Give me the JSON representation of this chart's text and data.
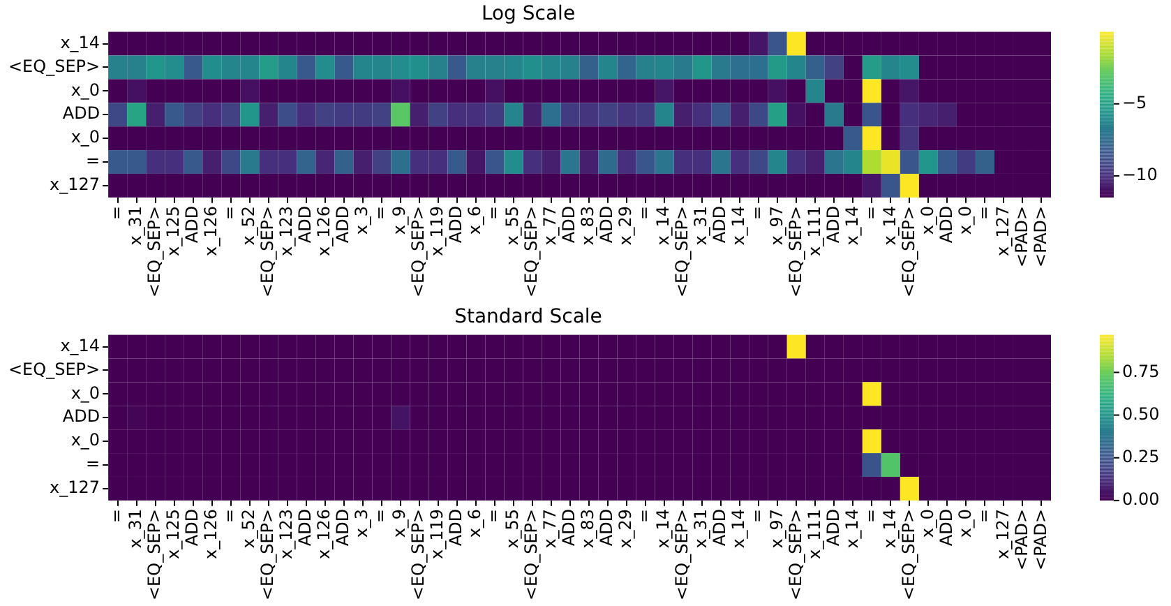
{
  "chart_data": [
    {
      "type": "heatmap",
      "title": "Log Scale",
      "categories": [
        "=",
        "x_31",
        "<EQ_SEP>",
        "x_125",
        "ADD",
        "x_126",
        "=",
        "x_52",
        "<EQ_SEP>",
        "x_123",
        "ADD",
        "x_126",
        "ADD",
        "x_3",
        "=",
        "x_9",
        "<EQ_SEP>",
        "x_119",
        "ADD",
        "x_6",
        "=",
        "x_55",
        "<EQ_SEP>",
        "x_77",
        "ADD",
        "x_83",
        "ADD",
        "x_29",
        "=",
        "x_14",
        "<EQ_SEP>",
        "x_31",
        "ADD",
        "x_14",
        "=",
        "x_97",
        "<EQ_SEP>",
        "x_111",
        "ADD",
        "x_14",
        "=",
        "x_14",
        "<EQ_SEP>",
        "x_0",
        "ADD",
        "x_0",
        "=",
        "x_127",
        "<PAD>",
        "<PAD>"
      ],
      "y_categories": [
        "x_14",
        "<EQ_SEP>",
        "x_0",
        "ADD",
        "x_0",
        "=",
        "x_127"
      ],
      "cells": [
        [
          -11.5,
          -11.5,
          -11.5,
          -11.5,
          -11.5,
          -11.5,
          -11.5,
          -11.5,
          -11.5,
          -11.5,
          -11.5,
          -11.5,
          -11.5,
          -11.5,
          -11.5,
          -11.5,
          -11.5,
          -11.5,
          -11.5,
          -11.5,
          -11.5,
          -11.5,
          -11.5,
          -11.5,
          -11.5,
          -11.5,
          -11.5,
          -11.5,
          -11.5,
          -11.5,
          -11.5,
          -11.5,
          -11.5,
          -11.5,
          -10.8,
          -8.5,
          0,
          -11.5,
          -11.5,
          -11.5,
          -11.5,
          -11.5,
          -11.5,
          -11.5,
          -11.5,
          -11.5,
          -11.5,
          -11.5,
          -11.5,
          -11.5
        ],
        [
          -6.5,
          -6.5,
          -5.5,
          -6,
          -8.3,
          -6,
          -6.3,
          -6.3,
          -5.2,
          -6.3,
          -8.3,
          -6,
          -8.3,
          -6.3,
          -6.3,
          -6,
          -5.8,
          -6.5,
          -8.3,
          -6.5,
          -6.5,
          -6.3,
          -5.8,
          -6.3,
          -6.5,
          -8,
          -6.3,
          -7.8,
          -6.5,
          -6.3,
          -6.8,
          -5.5,
          -6.8,
          -7.3,
          -7.3,
          -5.3,
          -6.3,
          -8,
          -9.3,
          -11.5,
          -5.2,
          -6.3,
          -6,
          -11.5,
          -11.5,
          -11.5,
          -11.5,
          -11.5,
          -11.5,
          -11.5
        ],
        [
          -11.5,
          -11,
          -11.5,
          -11.5,
          -11.5,
          -11.5,
          -11.5,
          -11,
          -11.5,
          -11.5,
          -11.5,
          -11.5,
          -11.5,
          -11.5,
          -11.5,
          -11,
          -11.5,
          -11.5,
          -11.5,
          -11.5,
          -11,
          -11.5,
          -11.5,
          -11.5,
          -11.5,
          -11.5,
          -11.5,
          -11.5,
          -11.5,
          -10.8,
          -11.5,
          -11.5,
          -11.5,
          -11.5,
          -11.5,
          -11,
          -11.5,
          -6.3,
          -11.5,
          -11.5,
          0,
          -11.5,
          -10.8,
          -11.5,
          -11.5,
          -11.5,
          -11.5,
          -11.5,
          -11.5,
          -11.5
        ],
        [
          -9,
          -4.8,
          -10.5,
          -8.3,
          -9.3,
          -10,
          -9.3,
          -5.5,
          -10.5,
          -8.8,
          -10,
          -9.3,
          -9.5,
          -9.5,
          -9.3,
          -3,
          -10.5,
          -9.3,
          -10,
          -10,
          -9.5,
          -6.3,
          -10.5,
          -7.3,
          -9.5,
          -9.8,
          -9.3,
          -9.8,
          -9.5,
          -6.3,
          -10.5,
          -10,
          -8.5,
          -10.5,
          -9,
          -5,
          -11,
          -11.5,
          -6.8,
          -11.5,
          -8.5,
          -11.5,
          -10,
          -10.3,
          -10.5,
          -11.5,
          -11.5,
          -11.5,
          -11.5,
          -11.5
        ],
        [
          -11.5,
          -11.5,
          -11.5,
          -11.5,
          -11.5,
          -11.5,
          -11.5,
          -11.5,
          -11.5,
          -11.5,
          -11.5,
          -11.5,
          -11.5,
          -11.5,
          -11.5,
          -11.5,
          -11.5,
          -11.5,
          -11.5,
          -11.5,
          -11.5,
          -11.5,
          -11.5,
          -11.5,
          -11.5,
          -11.5,
          -11.5,
          -11.5,
          -11.5,
          -11.5,
          -11.5,
          -11.5,
          -11.5,
          -11.5,
          -11.5,
          -11.5,
          -11.5,
          -11.5,
          -11.5,
          -8.3,
          0,
          -11.5,
          -9.8,
          -11.5,
          -11.5,
          -11.5,
          -11.5,
          -11.5,
          -11.5,
          -11.5
        ],
        [
          -8.3,
          -8.3,
          -10,
          -10,
          -8.3,
          -10.5,
          -9,
          -6.8,
          -10,
          -10,
          -7.8,
          -10.3,
          -8,
          -10.5,
          -9.3,
          -7.3,
          -10,
          -10,
          -8.3,
          -10.8,
          -8.5,
          -6,
          -10,
          -10.5,
          -7,
          -10.5,
          -7.5,
          -10,
          -8.5,
          -7,
          -10,
          -10,
          -7,
          -10,
          -9,
          -6.3,
          -10,
          -10.5,
          -7,
          -6.3,
          -1.4,
          -0.35,
          -8.5,
          -5.5,
          -8.3,
          -9.5,
          -8,
          -11.5,
          -11.5,
          -11.5
        ],
        [
          -11.5,
          -11.5,
          -11.5,
          -11.5,
          -11.5,
          -11.5,
          -11.5,
          -11.5,
          -11.5,
          -11.5,
          -11.5,
          -11.5,
          -11.5,
          -11.5,
          -11.5,
          -11.5,
          -11.5,
          -11.5,
          -11.5,
          -11.5,
          -11.5,
          -11.5,
          -11.5,
          -11.5,
          -11.5,
          -11.5,
          -11.5,
          -11.5,
          -11.5,
          -11.5,
          -11.5,
          -11.5,
          -11.5,
          -11.5,
          -11.5,
          -11.5,
          -11.5,
          -11.5,
          -11.5,
          -11.5,
          -10.8,
          -8.5,
          0,
          -11.5,
          -11.5,
          -11.5,
          -11.5,
          -11.5,
          -11.5,
          -11.5
        ]
      ],
      "clim": [
        -11.5,
        0
      ],
      "cticks": [
        {
          "value": -5,
          "label": "−5"
        },
        {
          "value": -10,
          "label": "−10"
        }
      ]
    },
    {
      "type": "heatmap",
      "title": "Standard Scale",
      "categories": [
        "=",
        "x_31",
        "<EQ_SEP>",
        "x_125",
        "ADD",
        "x_126",
        "=",
        "x_52",
        "<EQ_SEP>",
        "x_123",
        "ADD",
        "x_126",
        "ADD",
        "x_3",
        "=",
        "x_9",
        "<EQ_SEP>",
        "x_119",
        "ADD",
        "x_6",
        "=",
        "x_55",
        "<EQ_SEP>",
        "x_77",
        "ADD",
        "x_83",
        "ADD",
        "x_29",
        "=",
        "x_14",
        "<EQ_SEP>",
        "x_31",
        "ADD",
        "x_14",
        "=",
        "x_97",
        "<EQ_SEP>",
        "x_111",
        "ADD",
        "x_14",
        "=",
        "x_14",
        "<EQ_SEP>",
        "x_0",
        "ADD",
        "x_0",
        "=",
        "x_127",
        "<PAD>",
        "<PAD>"
      ],
      "y_categories": [
        "x_14",
        "<EQ_SEP>",
        "x_0",
        "ADD",
        "x_0",
        "=",
        "x_127"
      ],
      "cells": [
        [
          0,
          0,
          0,
          0,
          0,
          0,
          0,
          0,
          0,
          0,
          0,
          0,
          0,
          0,
          0,
          0,
          0,
          0,
          0,
          0,
          0,
          0,
          0,
          0,
          0,
          0,
          0,
          0,
          0,
          0,
          0,
          0,
          0,
          0,
          0,
          0,
          0.97,
          0,
          0,
          0,
          0,
          0,
          0,
          0,
          0,
          0,
          0,
          0,
          0,
          0
        ],
        [
          0,
          0,
          0,
          0,
          0,
          0,
          0,
          0,
          0,
          0,
          0,
          0,
          0,
          0,
          0,
          0,
          0,
          0,
          0,
          0,
          0,
          0,
          0,
          0,
          0,
          0,
          0,
          0,
          0,
          0,
          0,
          0,
          0,
          0,
          0,
          0,
          0,
          0,
          0,
          0,
          0,
          0,
          0,
          0,
          0,
          0,
          0,
          0,
          0,
          0
        ],
        [
          0,
          0,
          0,
          0,
          0,
          0,
          0,
          0,
          0,
          0,
          0,
          0,
          0,
          0,
          0,
          0,
          0,
          0,
          0,
          0,
          0,
          0,
          0,
          0,
          0,
          0,
          0,
          0,
          0,
          0,
          0,
          0,
          0,
          0,
          0,
          0,
          0,
          0,
          0,
          0,
          0.97,
          0,
          0,
          0,
          0,
          0,
          0,
          0,
          0,
          0
        ],
        [
          0,
          0.01,
          0,
          0,
          0,
          0,
          0,
          0,
          0,
          0,
          0,
          0,
          0,
          0,
          0,
          0.05,
          0,
          0,
          0,
          0,
          0,
          0,
          0,
          0,
          0,
          0,
          0,
          0,
          0,
          0,
          0,
          0,
          0,
          0,
          0,
          0,
          0,
          0,
          0,
          0,
          0,
          0,
          0,
          0,
          0,
          0,
          0,
          0,
          0,
          0
        ],
        [
          0,
          0,
          0,
          0,
          0,
          0,
          0,
          0,
          0,
          0,
          0,
          0,
          0,
          0,
          0,
          0,
          0,
          0,
          0,
          0,
          0,
          0,
          0,
          0,
          0,
          0,
          0,
          0,
          0,
          0,
          0,
          0,
          0,
          0,
          0,
          0,
          0,
          0,
          0,
          0,
          0.97,
          0,
          0,
          0,
          0,
          0,
          0,
          0,
          0,
          0
        ],
        [
          0,
          0,
          0,
          0,
          0,
          0,
          0,
          0,
          0,
          0,
          0,
          0,
          0,
          0,
          0,
          0,
          0,
          0,
          0,
          0,
          0,
          0,
          0,
          0,
          0,
          0,
          0,
          0,
          0,
          0,
          0,
          0,
          0,
          0,
          0,
          0,
          0,
          0,
          0,
          0,
          0.25,
          0.7,
          0,
          0,
          0,
          0,
          0,
          0,
          0,
          0
        ],
        [
          0,
          0,
          0,
          0,
          0,
          0,
          0,
          0,
          0,
          0,
          0,
          0,
          0,
          0,
          0,
          0,
          0,
          0,
          0,
          0,
          0,
          0,
          0,
          0,
          0,
          0,
          0,
          0,
          0,
          0,
          0,
          0,
          0,
          0,
          0,
          0,
          0,
          0,
          0,
          0,
          0,
          0,
          0.97,
          0,
          0,
          0,
          0,
          0,
          0,
          0
        ]
      ],
      "clim": [
        0,
        0.97
      ],
      "cticks": [
        {
          "value": 0,
          "label": "0.00"
        },
        {
          "value": 0.25,
          "label": "0.25"
        },
        {
          "value": 0.5,
          "label": "0.50"
        },
        {
          "value": 0.75,
          "label": "0.75"
        }
      ]
    }
  ]
}
